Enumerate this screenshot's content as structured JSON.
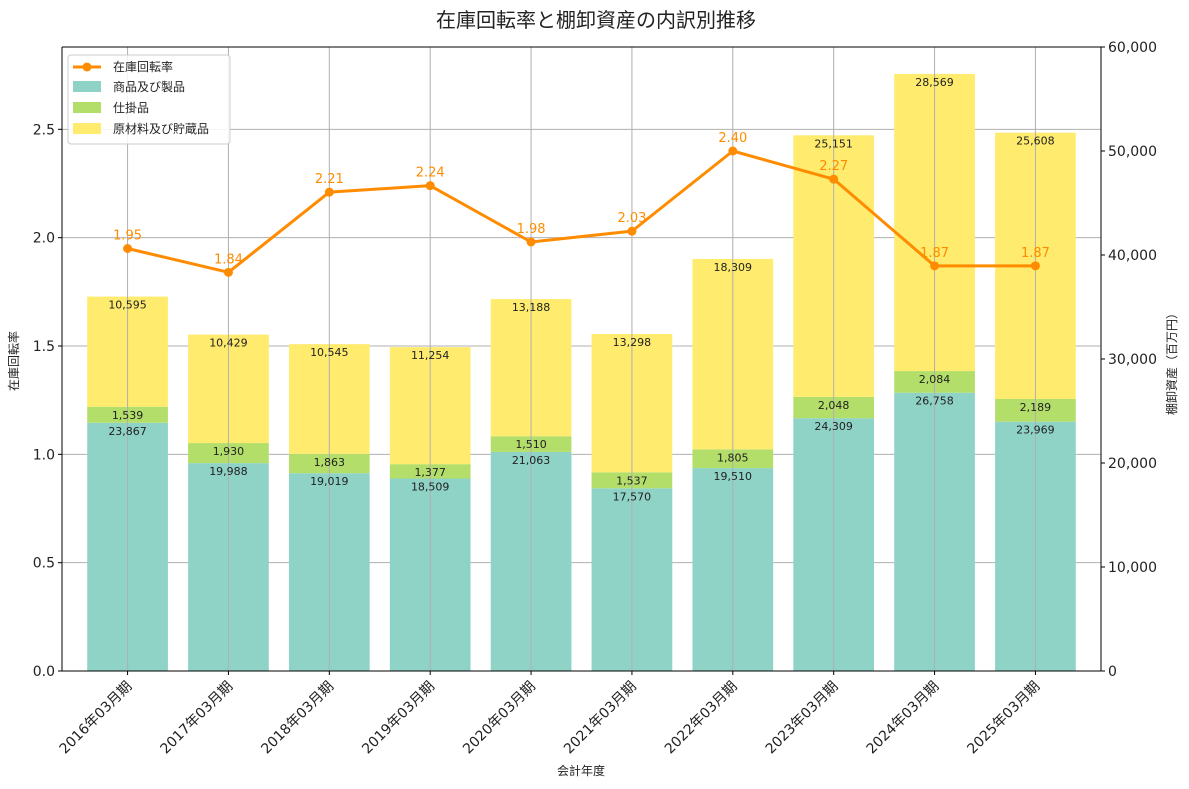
{
  "chart_data": {
    "type": "bar",
    "title": "在庫回転率と棚卸資産の内訳別推移",
    "xlabel": "会計年度",
    "ylabel_left": "在庫回転率",
    "ylabel_right": "棚卸資産（百万円）",
    "ylim_left": [
      0,
      2.88
    ],
    "ylim_right": [
      0,
      60000
    ],
    "yticks_left": [
      "0.0",
      "0.5",
      "1.0",
      "1.5",
      "2.0",
      "2.5"
    ],
    "yticks_left_values": [
      0,
      0.5,
      1.0,
      1.5,
      2.0,
      2.5
    ],
    "yticks_right": [
      "0",
      "10,000",
      "20,000",
      "30,000",
      "40,000",
      "50,000",
      "60,000"
    ],
    "yticks_right_values": [
      0,
      10000,
      20000,
      30000,
      40000,
      50000,
      60000
    ],
    "categories": [
      "2016年03月期",
      "2017年03月期",
      "2018年03月期",
      "2019年03月期",
      "2020年03月期",
      "2021年03月期",
      "2022年03月期",
      "2023年03月期",
      "2024年03月期",
      "2025年03月期"
    ],
    "series": [
      {
        "name": "商品及び製品",
        "type": "bar",
        "color": "#8fd3c7",
        "values": [
          23867,
          19988,
          19019,
          18509,
          21063,
          17570,
          19510,
          24309,
          26758,
          23969
        ],
        "labels": [
          "23,867",
          "19,988",
          "19,019",
          "18,509",
          "21,063",
          "17,570",
          "19,510",
          "24,309",
          "26,758",
          "23,969"
        ]
      },
      {
        "name": "仕掛品",
        "type": "bar",
        "color": "#b4de6a",
        "values": [
          1539,
          1930,
          1863,
          1377,
          1510,
          1537,
          1805,
          2048,
          2084,
          2189
        ],
        "labels": [
          "1,539",
          "1,930",
          "1,863",
          "1,377",
          "1,510",
          "1,537",
          "1,805",
          "2,048",
          "2,084",
          "2,189"
        ]
      },
      {
        "name": "原材料及び貯蔵品",
        "type": "bar",
        "color": "#ffeb6e",
        "values": [
          10595,
          10429,
          10545,
          11254,
          13188,
          13298,
          18309,
          25151,
          28569,
          25608
        ],
        "labels": [
          "10,595",
          "10,429",
          "10,545",
          "11,254",
          "13,188",
          "13,298",
          "18,309",
          "25,151",
          "28,569",
          "25,608"
        ]
      },
      {
        "name": "在庫回転率",
        "type": "line",
        "color": "#ff8c00",
        "values": [
          1.95,
          1.84,
          2.21,
          2.24,
          1.98,
          2.03,
          2.4,
          2.27,
          1.87,
          1.87
        ],
        "labels": [
          "1.95",
          "1.84",
          "2.21",
          "2.24",
          "1.98",
          "2.03",
          "2.40",
          "2.27",
          "1.87",
          "1.87"
        ]
      }
    ],
    "legend": {
      "position": "top-left",
      "items": [
        "在庫回転率",
        "商品及び製品",
        "仕掛品",
        "原材料及び貯蔵品"
      ]
    },
    "grid": true
  }
}
